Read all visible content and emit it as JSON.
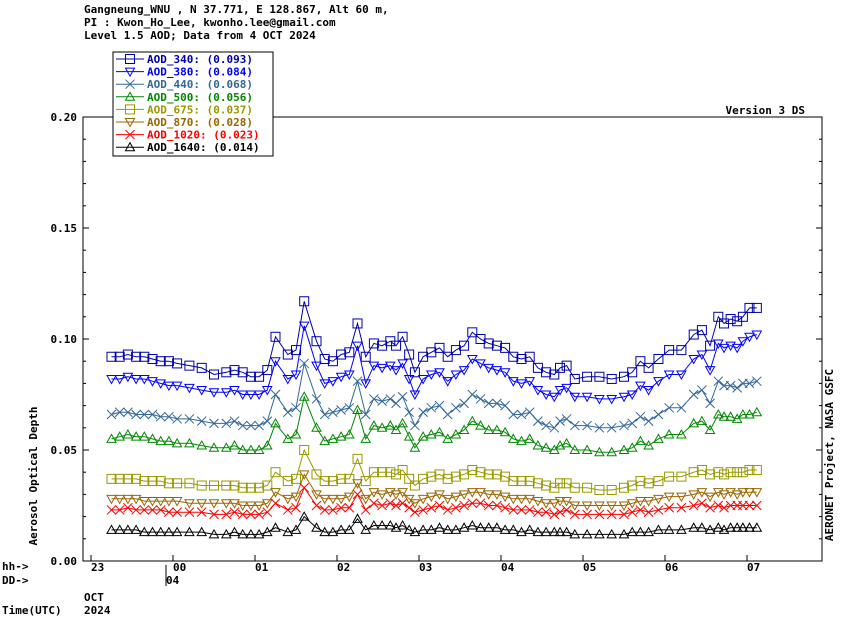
{
  "header": {
    "line1": "Gangneung_WNU , N 37.771, E 128.867, Alt 60 m,",
    "line2": "PI : Kwon_Ho_Lee, kwonho.lee@gmail.com",
    "line3": "Level 1.5 AOD; Data from 4 OCT 2024"
  },
  "version_label": "Version 3 DS",
  "right_label": "AERONET Project, NASA GSFC",
  "axes": {
    "ylabel": "Aerosol Optical Depth",
    "row_hh_label": "hh->",
    "row_dd_label": "DD->",
    "time_label": "Time(UTC)",
    "month_label": "OCT",
    "year_label": "2024",
    "dd_value": "04"
  },
  "chart_data": {
    "type": "line",
    "title": "",
    "ylabel": "Aerosol Optical Depth",
    "ylim": [
      0.0,
      0.2
    ],
    "yticks": [
      "0.00",
      "0.05",
      "0.10",
      "0.15",
      "0.20"
    ],
    "xlim": [
      -1,
      8
    ],
    "xticks": [
      {
        "label": "23",
        "x": -1
      },
      {
        "label": "00",
        "x": 0
      },
      {
        "label": "01",
        "x": 1
      },
      {
        "label": "02",
        "x": 2
      },
      {
        "label": "03",
        "x": 3
      },
      {
        "label": "04",
        "x": 4
      },
      {
        "label": "05",
        "x": 5
      },
      {
        "label": "06",
        "x": 6
      },
      {
        "label": "07",
        "x": 7
      }
    ],
    "legend_position": "top-left",
    "times": [
      -0.75,
      -0.65,
      -0.55,
      -0.45,
      -0.35,
      -0.25,
      -0.15,
      -0.05,
      0.05,
      0.2,
      0.35,
      0.5,
      0.65,
      0.75,
      0.85,
      0.95,
      1.05,
      1.15,
      1.25,
      1.4,
      1.5,
      1.6,
      1.75,
      1.85,
      1.95,
      2.05,
      2.15,
      2.25,
      2.35,
      2.45,
      2.55,
      2.65,
      2.72,
      2.8,
      2.88,
      2.95,
      3.05,
      3.15,
      3.25,
      3.35,
      3.45,
      3.55,
      3.65,
      3.75,
      3.85,
      3.95,
      4.05,
      4.15,
      4.25,
      4.35,
      4.45,
      4.55,
      4.65,
      4.72,
      4.8,
      4.9,
      5.05,
      5.2,
      5.35,
      5.5,
      5.6,
      5.7,
      5.8,
      5.92,
      6.05,
      6.2,
      6.35,
      6.45,
      6.55,
      6.65,
      6.72,
      6.8,
      6.88,
      6.95,
      7.03,
      7.12
    ],
    "series": [
      {
        "name": "AOD_340",
        "mean": "(0.093)",
        "color": "#0000aa",
        "marker": "square",
        "values": [
          0.092,
          0.092,
          0.093,
          0.092,
          0.092,
          0.091,
          0.09,
          0.09,
          0.089,
          0.088,
          0.087,
          0.084,
          0.085,
          0.086,
          0.085,
          0.083,
          0.083,
          0.086,
          0.101,
          0.093,
          0.095,
          0.117,
          0.099,
          0.091,
          0.09,
          0.093,
          0.094,
          0.107,
          0.092,
          0.098,
          0.097,
          0.099,
          0.097,
          0.101,
          0.093,
          0.085,
          0.092,
          0.094,
          0.096,
          0.092,
          0.095,
          0.097,
          0.103,
          0.1,
          0.098,
          0.097,
          0.096,
          0.092,
          0.091,
          0.092,
          0.087,
          0.085,
          0.084,
          0.087,
          0.088,
          0.082,
          0.083,
          0.083,
          0.082,
          0.083,
          0.085,
          0.09,
          0.087,
          0.091,
          0.095,
          0.095,
          0.102,
          0.104,
          0.097,
          0.11,
          0.107,
          0.109,
          0.108,
          0.11,
          0.114,
          0.114
        ]
      },
      {
        "name": "AOD_380",
        "mean": "(0.084)",
        "color": "#0000ff",
        "marker": "tri-down",
        "values": [
          0.082,
          0.082,
          0.083,
          0.082,
          0.082,
          0.081,
          0.08,
          0.079,
          0.079,
          0.078,
          0.077,
          0.076,
          0.076,
          0.077,
          0.075,
          0.075,
          0.075,
          0.077,
          0.09,
          0.082,
          0.084,
          0.106,
          0.088,
          0.08,
          0.081,
          0.083,
          0.084,
          0.097,
          0.08,
          0.088,
          0.087,
          0.088,
          0.086,
          0.089,
          0.082,
          0.075,
          0.082,
          0.084,
          0.085,
          0.081,
          0.084,
          0.086,
          0.091,
          0.089,
          0.087,
          0.086,
          0.085,
          0.081,
          0.08,
          0.081,
          0.077,
          0.075,
          0.074,
          0.077,
          0.078,
          0.074,
          0.074,
          0.073,
          0.073,
          0.074,
          0.075,
          0.079,
          0.077,
          0.081,
          0.084,
          0.084,
          0.091,
          0.093,
          0.086,
          0.098,
          0.096,
          0.097,
          0.096,
          0.099,
          0.101,
          0.102
        ]
      },
      {
        "name": "AOD_440",
        "mean": "(0.068)",
        "color": "#336699",
        "marker": "x",
        "values": [
          0.066,
          0.067,
          0.067,
          0.066,
          0.066,
          0.066,
          0.065,
          0.065,
          0.064,
          0.064,
          0.063,
          0.062,
          0.062,
          0.063,
          0.061,
          0.061,
          0.061,
          0.063,
          0.075,
          0.067,
          0.069,
          0.089,
          0.073,
          0.066,
          0.067,
          0.068,
          0.069,
          0.081,
          0.066,
          0.073,
          0.072,
          0.073,
          0.071,
          0.074,
          0.067,
          0.061,
          0.067,
          0.069,
          0.07,
          0.066,
          0.069,
          0.071,
          0.075,
          0.073,
          0.071,
          0.071,
          0.07,
          0.066,
          0.066,
          0.067,
          0.063,
          0.061,
          0.06,
          0.063,
          0.064,
          0.061,
          0.061,
          0.06,
          0.06,
          0.061,
          0.062,
          0.065,
          0.063,
          0.066,
          0.069,
          0.069,
          0.075,
          0.077,
          0.071,
          0.081,
          0.079,
          0.079,
          0.078,
          0.08,
          0.08,
          0.081
        ]
      },
      {
        "name": "AOD_500",
        "mean": "(0.056)",
        "color": "#008800",
        "marker": "tri-up",
        "values": [
          0.055,
          0.056,
          0.057,
          0.056,
          0.056,
          0.055,
          0.054,
          0.054,
          0.053,
          0.053,
          0.052,
          0.051,
          0.051,
          0.052,
          0.05,
          0.05,
          0.05,
          0.052,
          0.062,
          0.055,
          0.057,
          0.074,
          0.06,
          0.054,
          0.055,
          0.056,
          0.057,
          0.068,
          0.055,
          0.061,
          0.06,
          0.061,
          0.059,
          0.062,
          0.056,
          0.051,
          0.056,
          0.057,
          0.058,
          0.055,
          0.057,
          0.059,
          0.063,
          0.061,
          0.059,
          0.059,
          0.058,
          0.055,
          0.054,
          0.055,
          0.052,
          0.051,
          0.05,
          0.052,
          0.053,
          0.05,
          0.05,
          0.049,
          0.049,
          0.05,
          0.051,
          0.054,
          0.052,
          0.055,
          0.057,
          0.057,
          0.062,
          0.063,
          0.059,
          0.066,
          0.065,
          0.065,
          0.064,
          0.066,
          0.066,
          0.067
        ]
      },
      {
        "name": "AOD_675",
        "mean": "(0.037)",
        "color": "#999900",
        "marker": "square",
        "values": [
          0.037,
          0.037,
          0.037,
          0.037,
          0.036,
          0.036,
          0.036,
          0.035,
          0.035,
          0.035,
          0.034,
          0.034,
          0.034,
          0.034,
          0.033,
          0.033,
          0.033,
          0.034,
          0.04,
          0.036,
          0.037,
          0.05,
          0.039,
          0.036,
          0.036,
          0.037,
          0.037,
          0.046,
          0.036,
          0.04,
          0.04,
          0.04,
          0.039,
          0.041,
          0.037,
          0.034,
          0.037,
          0.038,
          0.039,
          0.037,
          0.038,
          0.039,
          0.041,
          0.04,
          0.039,
          0.039,
          0.038,
          0.036,
          0.036,
          0.036,
          0.035,
          0.034,
          0.033,
          0.035,
          0.035,
          0.033,
          0.033,
          0.032,
          0.032,
          0.033,
          0.034,
          0.036,
          0.035,
          0.036,
          0.038,
          0.038,
          0.04,
          0.041,
          0.039,
          0.04,
          0.039,
          0.04,
          0.04,
          0.04,
          0.041,
          0.041
        ]
      },
      {
        "name": "AOD_870",
        "mean": "(0.028)",
        "color": "#996600",
        "marker": "tri-down",
        "values": [
          0.028,
          0.028,
          0.028,
          0.028,
          0.027,
          0.027,
          0.027,
          0.027,
          0.027,
          0.026,
          0.026,
          0.026,
          0.026,
          0.026,
          0.025,
          0.025,
          0.025,
          0.026,
          0.031,
          0.028,
          0.029,
          0.039,
          0.03,
          0.028,
          0.028,
          0.028,
          0.029,
          0.035,
          0.028,
          0.031,
          0.03,
          0.031,
          0.03,
          0.031,
          0.028,
          0.026,
          0.028,
          0.029,
          0.03,
          0.028,
          0.029,
          0.03,
          0.031,
          0.031,
          0.03,
          0.03,
          0.029,
          0.028,
          0.028,
          0.028,
          0.027,
          0.026,
          0.026,
          0.027,
          0.027,
          0.025,
          0.025,
          0.025,
          0.025,
          0.025,
          0.026,
          0.027,
          0.027,
          0.028,
          0.029,
          0.029,
          0.03,
          0.031,
          0.029,
          0.031,
          0.03,
          0.031,
          0.03,
          0.031,
          0.031,
          0.031
        ]
      },
      {
        "name": "AOD_1020",
        "mean": "(0.023)",
        "color": "#ff0000",
        "marker": "x",
        "values": [
          0.023,
          0.023,
          0.024,
          0.023,
          0.023,
          0.023,
          0.023,
          0.022,
          0.022,
          0.022,
          0.022,
          0.021,
          0.021,
          0.022,
          0.021,
          0.021,
          0.021,
          0.022,
          0.026,
          0.023,
          0.024,
          0.033,
          0.025,
          0.023,
          0.023,
          0.024,
          0.024,
          0.03,
          0.023,
          0.026,
          0.025,
          0.026,
          0.025,
          0.026,
          0.024,
          0.022,
          0.023,
          0.024,
          0.025,
          0.023,
          0.024,
          0.025,
          0.026,
          0.026,
          0.025,
          0.025,
          0.024,
          0.023,
          0.023,
          0.023,
          0.022,
          0.022,
          0.021,
          0.022,
          0.023,
          0.021,
          0.021,
          0.021,
          0.021,
          0.021,
          0.022,
          0.023,
          0.022,
          0.023,
          0.024,
          0.024,
          0.025,
          0.026,
          0.024,
          0.025,
          0.024,
          0.025,
          0.025,
          0.025,
          0.025,
          0.025
        ]
      },
      {
        "name": "AOD_1640",
        "mean": "(0.014)",
        "color": "#000000",
        "marker": "tri-up",
        "values": [
          0.014,
          0.014,
          0.014,
          0.014,
          0.013,
          0.013,
          0.013,
          0.013,
          0.013,
          0.013,
          0.013,
          0.012,
          0.012,
          0.013,
          0.012,
          0.012,
          0.012,
          0.013,
          0.015,
          0.013,
          0.014,
          0.02,
          0.015,
          0.013,
          0.013,
          0.014,
          0.014,
          0.019,
          0.014,
          0.016,
          0.016,
          0.016,
          0.015,
          0.016,
          0.014,
          0.013,
          0.014,
          0.014,
          0.015,
          0.014,
          0.014,
          0.015,
          0.016,
          0.015,
          0.015,
          0.015,
          0.014,
          0.014,
          0.013,
          0.014,
          0.013,
          0.013,
          0.013,
          0.013,
          0.013,
          0.012,
          0.012,
          0.012,
          0.012,
          0.012,
          0.013,
          0.013,
          0.013,
          0.014,
          0.014,
          0.014,
          0.015,
          0.015,
          0.014,
          0.015,
          0.014,
          0.015,
          0.015,
          0.015,
          0.015,
          0.015
        ]
      }
    ]
  }
}
